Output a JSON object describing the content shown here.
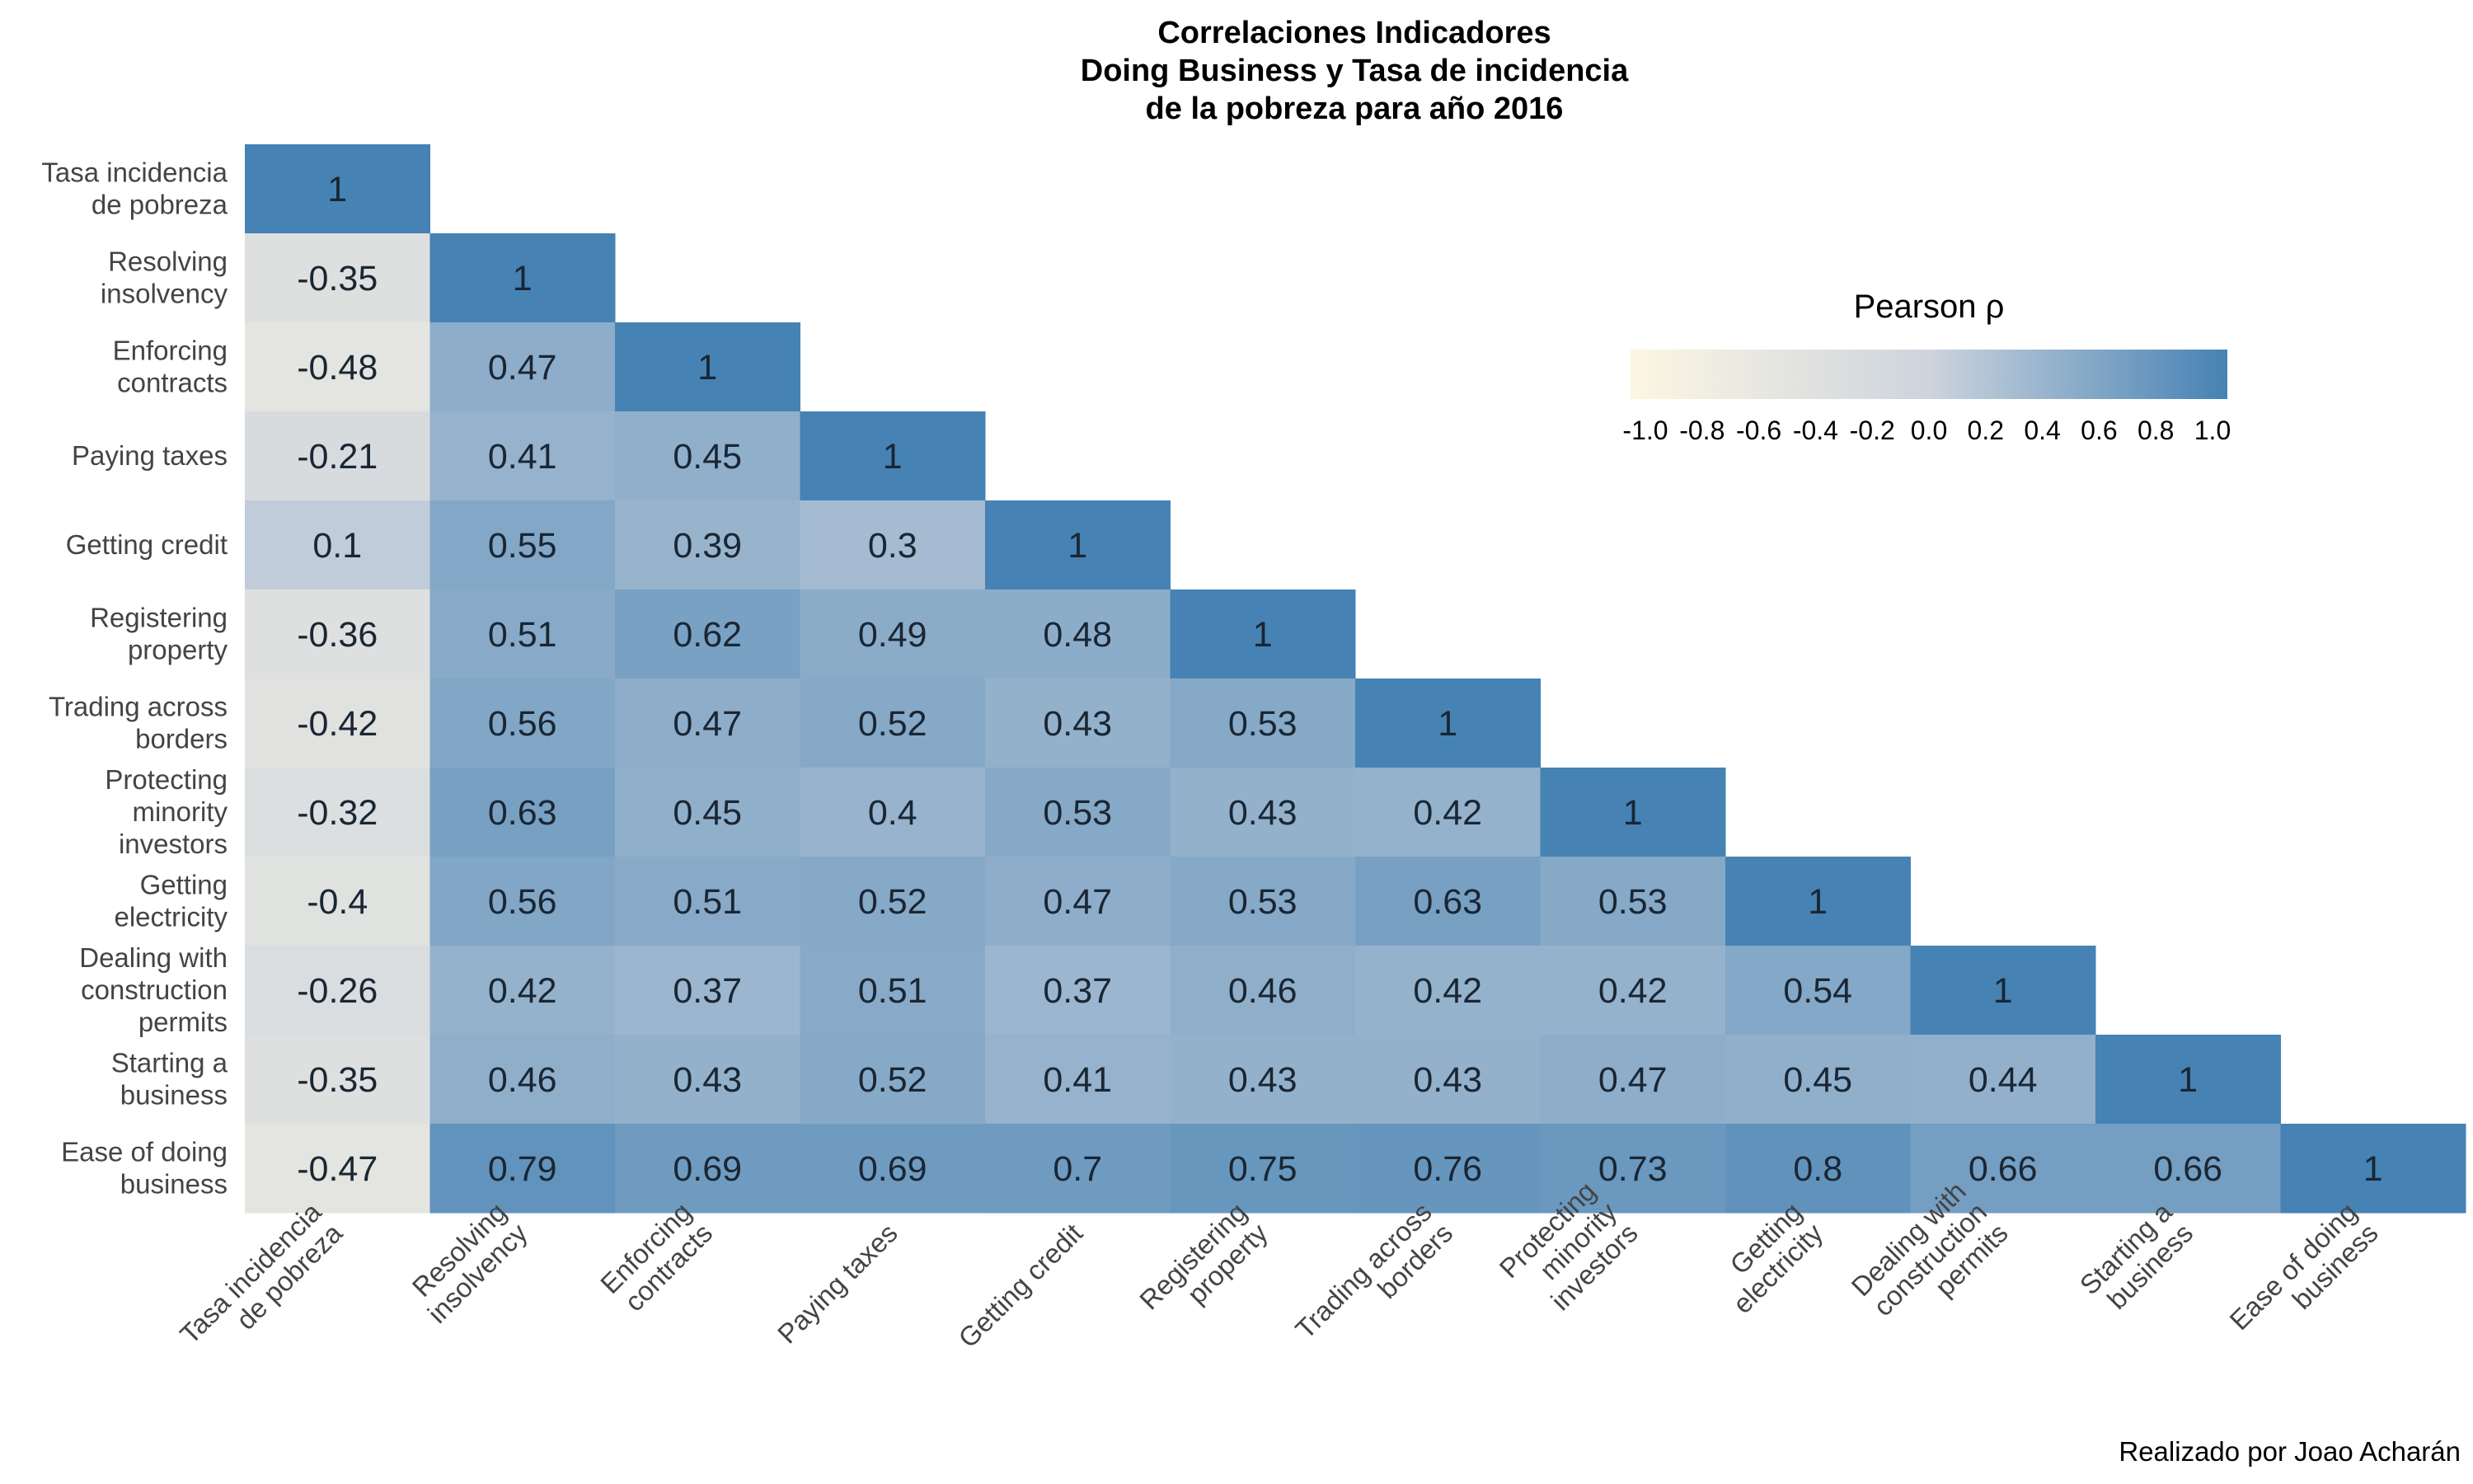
{
  "chart_data": {
    "type": "heatmap",
    "title_lines": [
      "Correlaciones Indicadores",
      "Doing Business y Tasa de incidencia",
      "de la pobreza para año 2016"
    ],
    "row_labels": [
      [
        "Tasa incidencia",
        "de pobreza"
      ],
      [
        "Resolving",
        "insolvency"
      ],
      [
        "Enforcing",
        "contracts"
      ],
      [
        "Paying taxes"
      ],
      [
        "Getting credit"
      ],
      [
        "Registering",
        "property"
      ],
      [
        "Trading across",
        "borders"
      ],
      [
        "Protecting",
        "minority",
        "investors"
      ],
      [
        "Getting",
        "electricity"
      ],
      [
        "Dealing with",
        "construction",
        "permits"
      ],
      [
        "Starting a",
        "business"
      ],
      [
        "Ease of doing",
        "business"
      ]
    ],
    "col_labels": [
      [
        "Tasa incidencia",
        "de pobreza"
      ],
      [
        "Resolving",
        "insolvency"
      ],
      [
        "Enforcing",
        "contracts"
      ],
      [
        "Paying taxes"
      ],
      [
        "Getting credit"
      ],
      [
        "Registering",
        "property"
      ],
      [
        "Trading across",
        "borders"
      ],
      [
        "Protecting",
        "minority",
        "investors"
      ],
      [
        "Getting",
        "electricity"
      ],
      [
        "Dealing with",
        "construction",
        "permits"
      ],
      [
        "Starting a",
        "business"
      ],
      [
        "Ease of doing",
        "business"
      ]
    ],
    "matrix": [
      [
        1
      ],
      [
        -0.35,
        1
      ],
      [
        -0.48,
        0.47,
        1
      ],
      [
        -0.21,
        0.41,
        0.45,
        1
      ],
      [
        0.1,
        0.55,
        0.39,
        0.3,
        1
      ],
      [
        -0.36,
        0.51,
        0.62,
        0.49,
        0.48,
        1
      ],
      [
        -0.42,
        0.56,
        0.47,
        0.52,
        0.43,
        0.53,
        1
      ],
      [
        -0.32,
        0.63,
        0.45,
        0.4,
        0.53,
        0.43,
        0.42,
        1
      ],
      [
        -0.4,
        0.56,
        0.51,
        0.52,
        0.47,
        0.53,
        0.63,
        0.53,
        1
      ],
      [
        -0.26,
        0.42,
        0.37,
        0.51,
        0.37,
        0.46,
        0.42,
        0.42,
        0.54,
        1
      ],
      [
        -0.35,
        0.46,
        0.43,
        0.52,
        0.41,
        0.43,
        0.43,
        0.47,
        0.45,
        0.44,
        1
      ],
      [
        -0.47,
        0.79,
        0.69,
        0.69,
        0.7,
        0.75,
        0.76,
        0.73,
        0.8,
        0.66,
        0.66,
        1
      ]
    ],
    "legend": {
      "title": "Pearson ρ",
      "ticks": [
        "-1.0",
        "-0.8",
        "-0.6",
        "-0.4",
        "-0.2",
        "0.0",
        "0.2",
        "0.4",
        "0.6",
        "0.8",
        "1.0"
      ],
      "range": [
        -1,
        1
      ],
      "placement": "top-right",
      "color_low": "#fdf6e3",
      "color_mid": "#cdd4dd",
      "color_high": "#4682b4"
    },
    "caption": "Realizado por Joao Acharán"
  }
}
